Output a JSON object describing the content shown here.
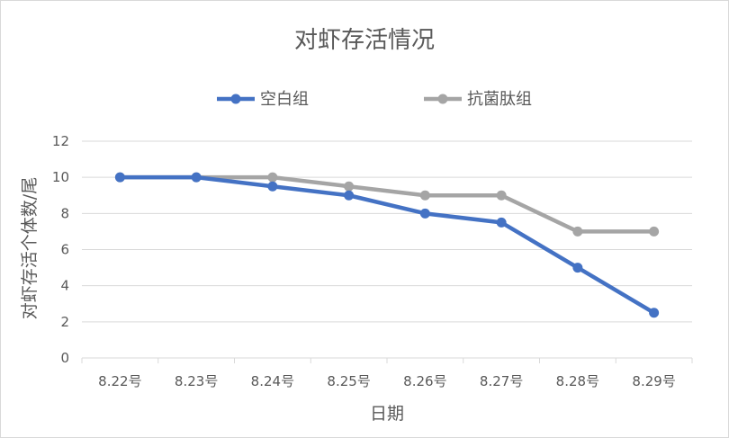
{
  "chart_data": {
    "type": "line",
    "title": "对虾存活情况",
    "xlabel": "日期",
    "ylabel": "对虾存活个体数/尾",
    "categories": [
      "8.22号",
      "8.23号",
      "8.24号",
      "8.25号",
      "8.26号",
      "8.27号",
      "8.28号",
      "8.29号"
    ],
    "ylim": [
      0,
      12
    ],
    "yticks": [
      0,
      2,
      4,
      6,
      8,
      10,
      12
    ],
    "grid": true,
    "legend_position": "top",
    "series": [
      {
        "name": "空白组",
        "color": "#4472c4",
        "values": [
          10,
          10,
          9.5,
          9,
          8,
          7.5,
          5,
          2.5
        ]
      },
      {
        "name": "抗菌肽组",
        "color": "#a5a5a5",
        "values": [
          10,
          10,
          10,
          9.5,
          9,
          9,
          7,
          7
        ]
      }
    ]
  }
}
